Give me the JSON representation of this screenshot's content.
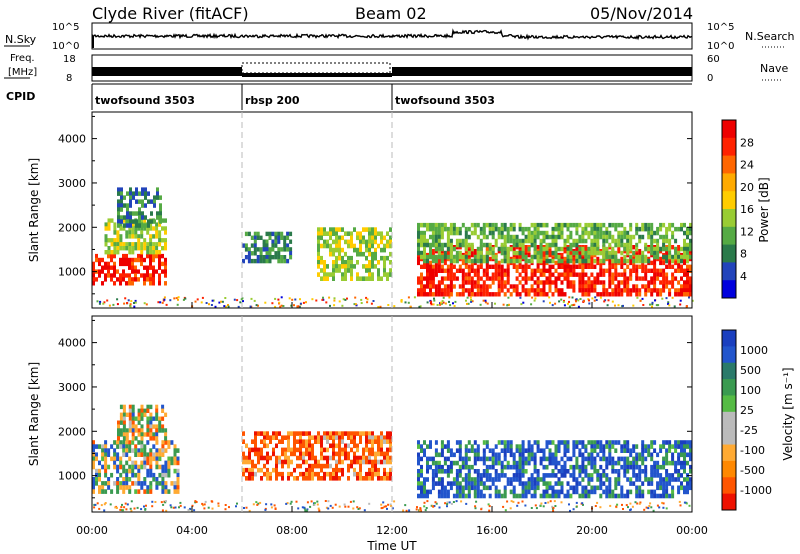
{
  "header": {
    "station": "Clyde River (fitACF)",
    "beam": "Beam 02",
    "date": "05/Nov/2014"
  },
  "noise_panel": {
    "left_label": "N.Sky",
    "left_ticks": [
      "10^5",
      "10^0"
    ],
    "right_ticks": [
      "10^5",
      "10^0"
    ],
    "right_label": "N.Search",
    "right_legend_line": "dotted"
  },
  "freq_panel": {
    "left_label_line1": "Freq.",
    "left_label_line2": "[MHz]",
    "left_ticks": [
      "18",
      "8"
    ],
    "right_ticks": [
      "60",
      "0"
    ],
    "right_label": "Nave",
    "right_legend_line": "dotted"
  },
  "cpid": {
    "label": "CPID",
    "segments": [
      {
        "name": "twofsound 3503",
        "start_hour": 0,
        "end_hour": 6
      },
      {
        "name": "rbsp 200",
        "start_hour": 6,
        "end_hour": 12
      },
      {
        "name": "twofsound 3503",
        "start_hour": 12,
        "end_hour": 24
      }
    ]
  },
  "axes": {
    "y_label": "Slant Range [km]",
    "y_ticks": [
      1000,
      2000,
      3000,
      4000
    ],
    "y_range_km": [
      180,
      4600
    ],
    "x_ticks": [
      "00:00",
      "04:00",
      "08:00",
      "12:00",
      "16:00",
      "20:00",
      "00:00"
    ],
    "x_range_hours": [
      0,
      24
    ],
    "x_label": "Time UT",
    "mode_change_hours": [
      6,
      12
    ]
  },
  "power_colorbar": {
    "label": "Power [dB]",
    "ticks": [
      "4",
      "8",
      "12",
      "16",
      "20",
      "24",
      "28"
    ],
    "colors": [
      "#0000dd",
      "#2244bb",
      "#2a7a4a",
      "#55aa44",
      "#99cc33",
      "#ffcc00",
      "#ffaa00",
      "#ff6600",
      "#ff2200",
      "#ee0000"
    ]
  },
  "velocity_colorbar": {
    "label": "Velocity [m s⁻¹]",
    "ticks": [
      "1000",
      "500",
      "100",
      "25",
      "-25",
      "-100",
      "-500",
      "-1000"
    ],
    "colors": [
      "#1a3fbf",
      "#2255cc",
      "#2a7a6a",
      "#3a9a50",
      "#55bb44",
      "#bbbbbb",
      "#bbbbbb",
      "#ffaa33",
      "#ff8800",
      "#ff5500",
      "#ee1100"
    ]
  },
  "chart_data": [
    {
      "type": "heatmap",
      "title": "Power",
      "xlabel": "Time UT",
      "ylabel": "Slant Range [km]",
      "xlim": [
        0,
        24
      ],
      "ylim": [
        180,
        4600
      ],
      "colorbar": "Power [dB]",
      "regions": [
        {
          "t": [
            0.0,
            3.0
          ],
          "range_km": [
            700,
            1400
          ],
          "value_db": 28
        },
        {
          "t": [
            0.5,
            3.0
          ],
          "range_km": [
            1400,
            2200
          ],
          "value_db": 14
        },
        {
          "t": [
            1.0,
            2.8
          ],
          "range_km": [
            2000,
            2900
          ],
          "value_db": 8
        },
        {
          "t": [
            6.0,
            8.0
          ],
          "range_km": [
            1200,
            1900
          ],
          "value_db": 8
        },
        {
          "t": [
            9.0,
            12.0
          ],
          "range_km": [
            800,
            2000
          ],
          "value_db": 14
        },
        {
          "t": [
            13.0,
            24.0
          ],
          "range_km": [
            450,
            1600
          ],
          "value_db": 28
        },
        {
          "t": [
            13.0,
            24.0
          ],
          "range_km": [
            1200,
            2100
          ],
          "value_db": 12
        }
      ]
    },
    {
      "type": "heatmap",
      "title": "Velocity",
      "xlabel": "Time UT",
      "ylabel": "Slant Range [km]",
      "xlim": [
        0,
        24
      ],
      "ylim": [
        180,
        4600
      ],
      "colorbar": "Velocity [m s⁻¹]",
      "regions": [
        {
          "t": [
            0.0,
            3.5
          ],
          "range_km": [
            600,
            1800
          ],
          "value_ms": 100
        },
        {
          "t": [
            1.0,
            3.0
          ],
          "range_km": [
            1800,
            2600
          ],
          "value_ms": -100
        },
        {
          "t": [
            6.0,
            12.0
          ],
          "range_km": [
            900,
            2000
          ],
          "value_ms": -500
        },
        {
          "t": [
            13.0,
            24.0
          ],
          "range_km": [
            500,
            1800
          ],
          "value_ms": 500
        }
      ]
    }
  ]
}
